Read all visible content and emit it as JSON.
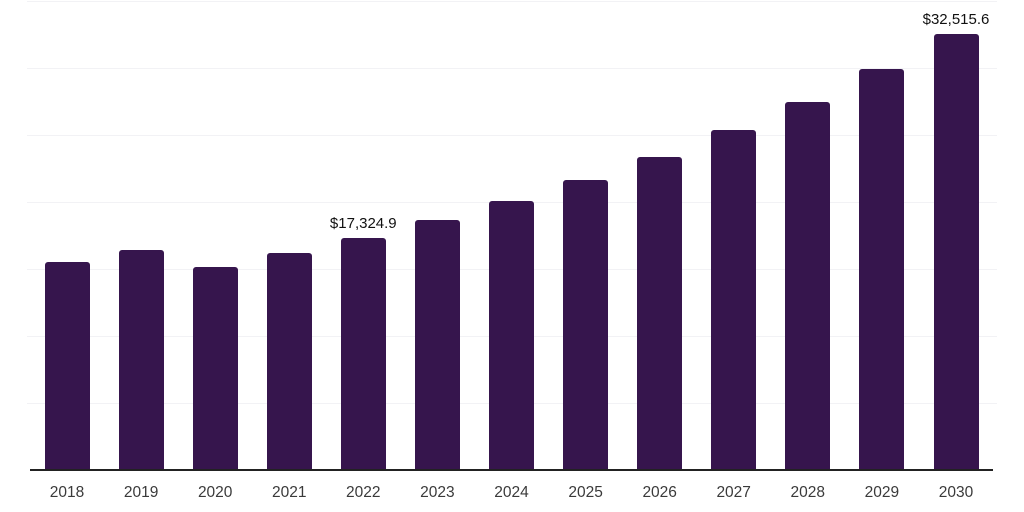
{
  "chart_data": {
    "type": "bar",
    "title": "",
    "xlabel": "",
    "ylabel": "",
    "categories": [
      "2018",
      "2019",
      "2020",
      "2021",
      "2022",
      "2023",
      "2024",
      "2025",
      "2026",
      "2027",
      "2028",
      "2029",
      "2030"
    ],
    "values": [
      15520,
      16420,
      15150,
      16200,
      17324.9,
      18660,
      20080,
      21640,
      23360,
      25370,
      27460,
      29930,
      32515.6
    ],
    "data_labels": [
      "",
      "",
      "",
      "",
      "$17,324.9",
      "",
      "",
      "",
      "",
      "",
      "",
      "",
      "$32,515.6"
    ],
    "ylim": [
      0,
      35000
    ],
    "gridline_step": 5000,
    "grid": true,
    "legend_position": "none",
    "colors": {
      "bar": "#36154D",
      "background": "#ffffff",
      "gridline": "#f2f2f5",
      "axis_line": "#222222",
      "tick_label": "#3a3a3a",
      "data_label": "#111111"
    }
  }
}
